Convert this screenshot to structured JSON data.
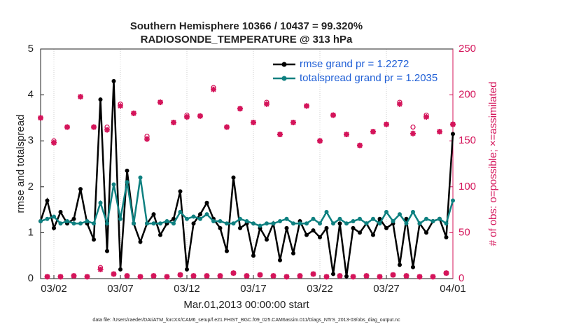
{
  "chart_data": {
    "type": "line",
    "title": "Southern Hemisphere 10366 / 10437 = 99.320%",
    "subtitle": "RADIOSONDE_TEMPERATURE @ 313 hPa",
    "xlabel": "Mar.01,2013 00:00:00 start",
    "ylabel": "rmse and totalspread",
    "y2label": "# of obs: o=possible; ×=assimilated",
    "footnote": "data file: /Users/raeder/DAI/ATM_forcXX/CAM6_setup/f.e21.FHIST_BGC.f09_025.CAM6assim.011/Diags_NTrS_2013-03/obs_diag_output.nc",
    "x": [
      0,
      0.5,
      1,
      1.5,
      2,
      2.5,
      3,
      3.5,
      4,
      4.5,
      5,
      5.5,
      6,
      6.5,
      7,
      7.5,
      8,
      8.5,
      9,
      9.5,
      10,
      10.5,
      11,
      11.5,
      12,
      12.5,
      13,
      13.5,
      14,
      14.5,
      15,
      15.5,
      16,
      16.5,
      17,
      17.5,
      18,
      18.5,
      19,
      19.5,
      20,
      20.5,
      21,
      21.5,
      22,
      22.5,
      23,
      23.5,
      24,
      24.5,
      25,
      25.5,
      26,
      26.5,
      27,
      27.5,
      28,
      28.5,
      29,
      29.5,
      30,
      30.5,
      31
    ],
    "series": [
      {
        "name": "rmse grand pr = 1.2272",
        "color": "#000000",
        "kind": "line",
        "values": [
          1.25,
          1.7,
          1.1,
          1.45,
          1.2,
          1.3,
          1.95,
          1.2,
          0.85,
          3.9,
          0.6,
          4.3,
          0.2,
          2.35,
          1.2,
          0.8,
          1.2,
          1.4,
          0.95,
          1.2,
          1.3,
          1.9,
          0.2,
          1.2,
          1.4,
          1.65,
          1.3,
          1.1,
          0.6,
          2.2,
          1.1,
          1.2,
          0.5,
          1.1,
          0.85,
          1.2,
          0.4,
          1.1,
          0.55,
          1.25,
          0.95,
          1.05,
          0.9,
          1.1,
          0.1,
          1.2,
          0.05,
          1.1,
          1.0,
          1.2,
          0.95,
          1.3,
          1.1,
          1.2,
          0.3,
          1.3,
          0.25,
          1.2,
          1.0,
          1.25,
          1.3,
          0.9,
          3.15
        ]
      },
      {
        "name": "totalspread grand pr = 1.2035",
        "color": "#0e8080",
        "kind": "line",
        "values": [
          1.25,
          1.3,
          1.35,
          1.2,
          1.25,
          1.2,
          1.2,
          1.25,
          1.2,
          1.65,
          1.2,
          2.05,
          1.3,
          2.1,
          1.2,
          2.2,
          1.2,
          1.2,
          1.2,
          1.25,
          1.2,
          1.45,
          1.3,
          1.35,
          1.3,
          1.4,
          1.25,
          1.25,
          1.2,
          1.2,
          1.3,
          1.25,
          1.2,
          1.15,
          1.2,
          1.2,
          1.25,
          1.3,
          1.2,
          1.2,
          1.2,
          1.3,
          1.2,
          1.45,
          1.2,
          1.3,
          1.2,
          1.25,
          1.3,
          1.2,
          1.3,
          1.2,
          1.45,
          1.25,
          1.4,
          1.2,
          1.45,
          1.2,
          1.3,
          1.25,
          1.3,
          1.2,
          1.7
        ]
      },
      {
        "name": "possible",
        "color": "#d4145a",
        "kind": "circle",
        "axis": "y2",
        "values": [
          175,
          2,
          150,
          2,
          165,
          3,
          198,
          2,
          165,
          12,
          165,
          5,
          190,
          3,
          180,
          2,
          155,
          3,
          192,
          2,
          170,
          4,
          178,
          3,
          177,
          3,
          208,
          3,
          165,
          6,
          185,
          3,
          170,
          4,
          192,
          3,
          157,
          2,
          170,
          3,
          188,
          5,
          150,
          2,
          178,
          3,
          157,
          2,
          145,
          3,
          160,
          2,
          168,
          4,
          192,
          3,
          165,
          2,
          178,
          2,
          160,
          6,
          168
        ]
      },
      {
        "name": "assimilated",
        "color": "#d4145a",
        "kind": "star",
        "axis": "y2",
        "values": [
          175,
          2,
          148,
          2,
          165,
          3,
          198,
          2,
          165,
          10,
          162,
          5,
          188,
          3,
          180,
          2,
          152,
          3,
          192,
          2,
          170,
          4,
          176,
          3,
          177,
          3,
          206,
          3,
          165,
          6,
          185,
          3,
          170,
          4,
          190,
          3,
          157,
          2,
          170,
          3,
          188,
          5,
          150,
          2,
          178,
          3,
          157,
          2,
          145,
          3,
          160,
          2,
          168,
          4,
          190,
          3,
          158,
          2,
          176,
          2,
          160,
          6,
          168
        ]
      }
    ],
    "legend": "northeast",
    "legend_color": "#1f5fd6",
    "xgrid": true,
    "xlim": [
      0,
      31
    ],
    "xticks": [
      {
        "value": 1,
        "label": "03/02"
      },
      {
        "value": 6,
        "label": "03/07"
      },
      {
        "value": 11,
        "label": "03/12"
      },
      {
        "value": 16,
        "label": "03/17"
      },
      {
        "value": 21,
        "label": "03/22"
      },
      {
        "value": 26,
        "label": "03/27"
      },
      {
        "value": 31,
        "label": "04/01"
      }
    ],
    "ylim": [
      0,
      5
    ],
    "yticks": [
      0,
      1,
      2,
      3,
      4,
      5
    ],
    "y2lim": [
      0,
      250
    ],
    "y2ticks": [
      0,
      50,
      100,
      150,
      200,
      250
    ],
    "y2color": "#d4145a"
  }
}
